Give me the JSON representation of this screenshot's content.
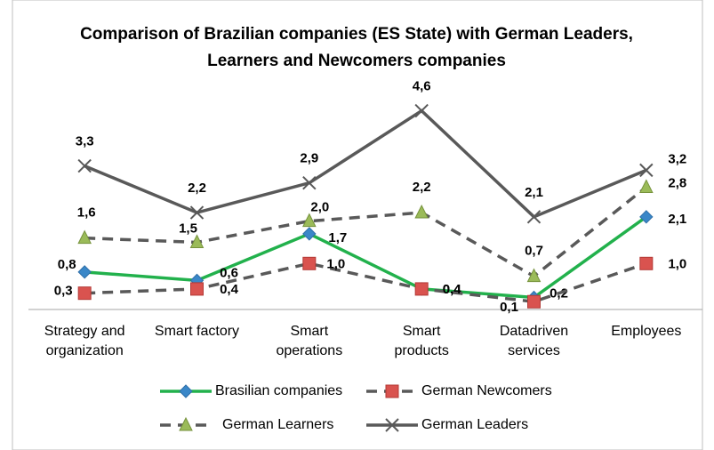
{
  "chart_data": {
    "type": "line",
    "title": "Comparison of Brazilian companies (ES State) with German Leaders, Learners and Newcomers companies",
    "categories": [
      "Strategy and organization",
      "Smart factory",
      "Smart operations",
      "Smart products",
      "Datadriven services",
      "Employees"
    ],
    "ylim": [
      0,
      5
    ],
    "series": [
      {
        "name": "Brasilian companies",
        "color": "#22b14c",
        "marker_color": "#3a87c8",
        "marker": "diamond",
        "dash": false,
        "values": [
          0.8,
          0.6,
          1.7,
          0.4,
          0.2,
          2.1
        ],
        "value_labels": [
          "0,8",
          "0,6",
          "1,7",
          "0,4",
          "0,2",
          "2,1"
        ]
      },
      {
        "name": "German Newcomers",
        "color": "#595959",
        "marker_color": "#d9534f",
        "marker": "square",
        "dash": true,
        "values": [
          0.3,
          0.4,
          1.0,
          0.4,
          0.1,
          1.0
        ],
        "value_labels": [
          "0,3",
          "0,4",
          "1,0",
          "0,4",
          "0,1",
          "1,0"
        ]
      },
      {
        "name": "German Learners",
        "color": "#595959",
        "marker_color": "#9bbb59",
        "marker": "triangle",
        "dash": true,
        "values": [
          1.6,
          1.5,
          2.0,
          2.2,
          0.7,
          2.8
        ],
        "value_labels": [
          "1,6",
          "1,5",
          "2,0",
          "2,2",
          "0,7",
          "2,8"
        ]
      },
      {
        "name": "German Leaders",
        "color": "#595959",
        "marker_color": "#595959",
        "marker": "x",
        "dash": false,
        "values": [
          3.3,
          2.2,
          2.9,
          4.6,
          2.1,
          3.2
        ],
        "value_labels": [
          "3,3",
          "2,2",
          "2,9",
          "4,6",
          "2,1",
          "3,2"
        ]
      }
    ]
  }
}
